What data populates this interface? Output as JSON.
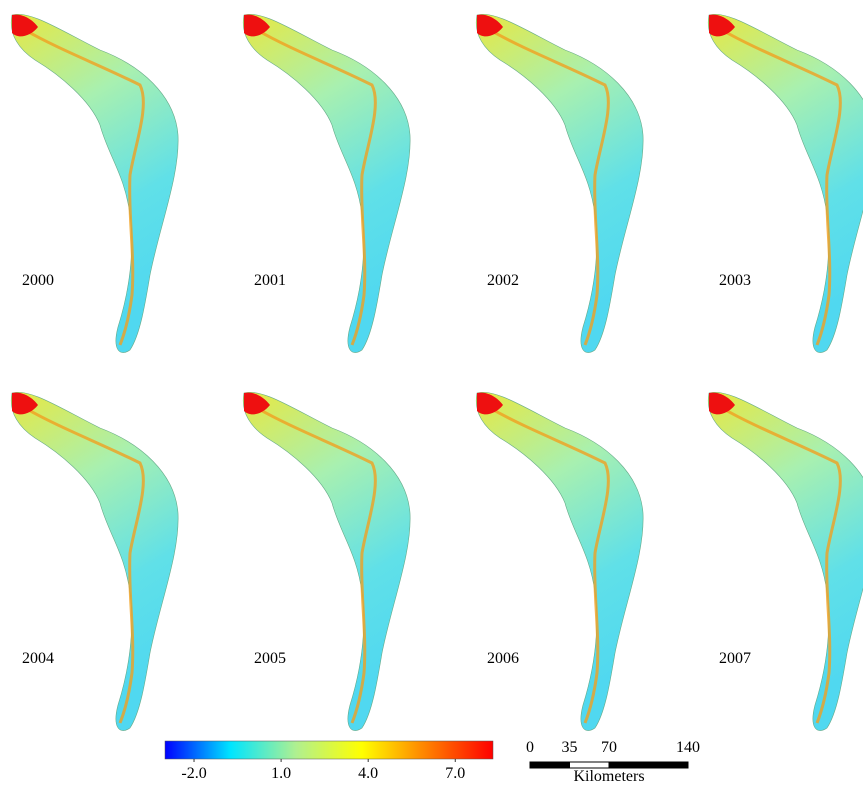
{
  "panels": [
    {
      "label": "2000"
    },
    {
      "label": "2001"
    },
    {
      "label": "2002"
    },
    {
      "label": "2003"
    },
    {
      "label": "2004"
    },
    {
      "label": "2005"
    },
    {
      "label": "2006"
    },
    {
      "label": "2007"
    }
  ],
  "colorbar": {
    "range": [
      -3,
      8.3
    ],
    "colors": [
      "#0000ff",
      "#00e5ff",
      "#b0f090",
      "#ffff00",
      "#ff7f00",
      "#ff0000"
    ],
    "ticks": [
      {
        "value": -2,
        "label": "-2.0"
      },
      {
        "value": 1,
        "label": "1.0"
      },
      {
        "value": 4,
        "label": "4.0"
      },
      {
        "value": 7,
        "label": "7.0"
      }
    ]
  },
  "scalebar": {
    "range": [
      0,
      140
    ],
    "ticks": [
      0,
      35,
      70,
      140
    ],
    "unit": "Kilometers"
  }
}
